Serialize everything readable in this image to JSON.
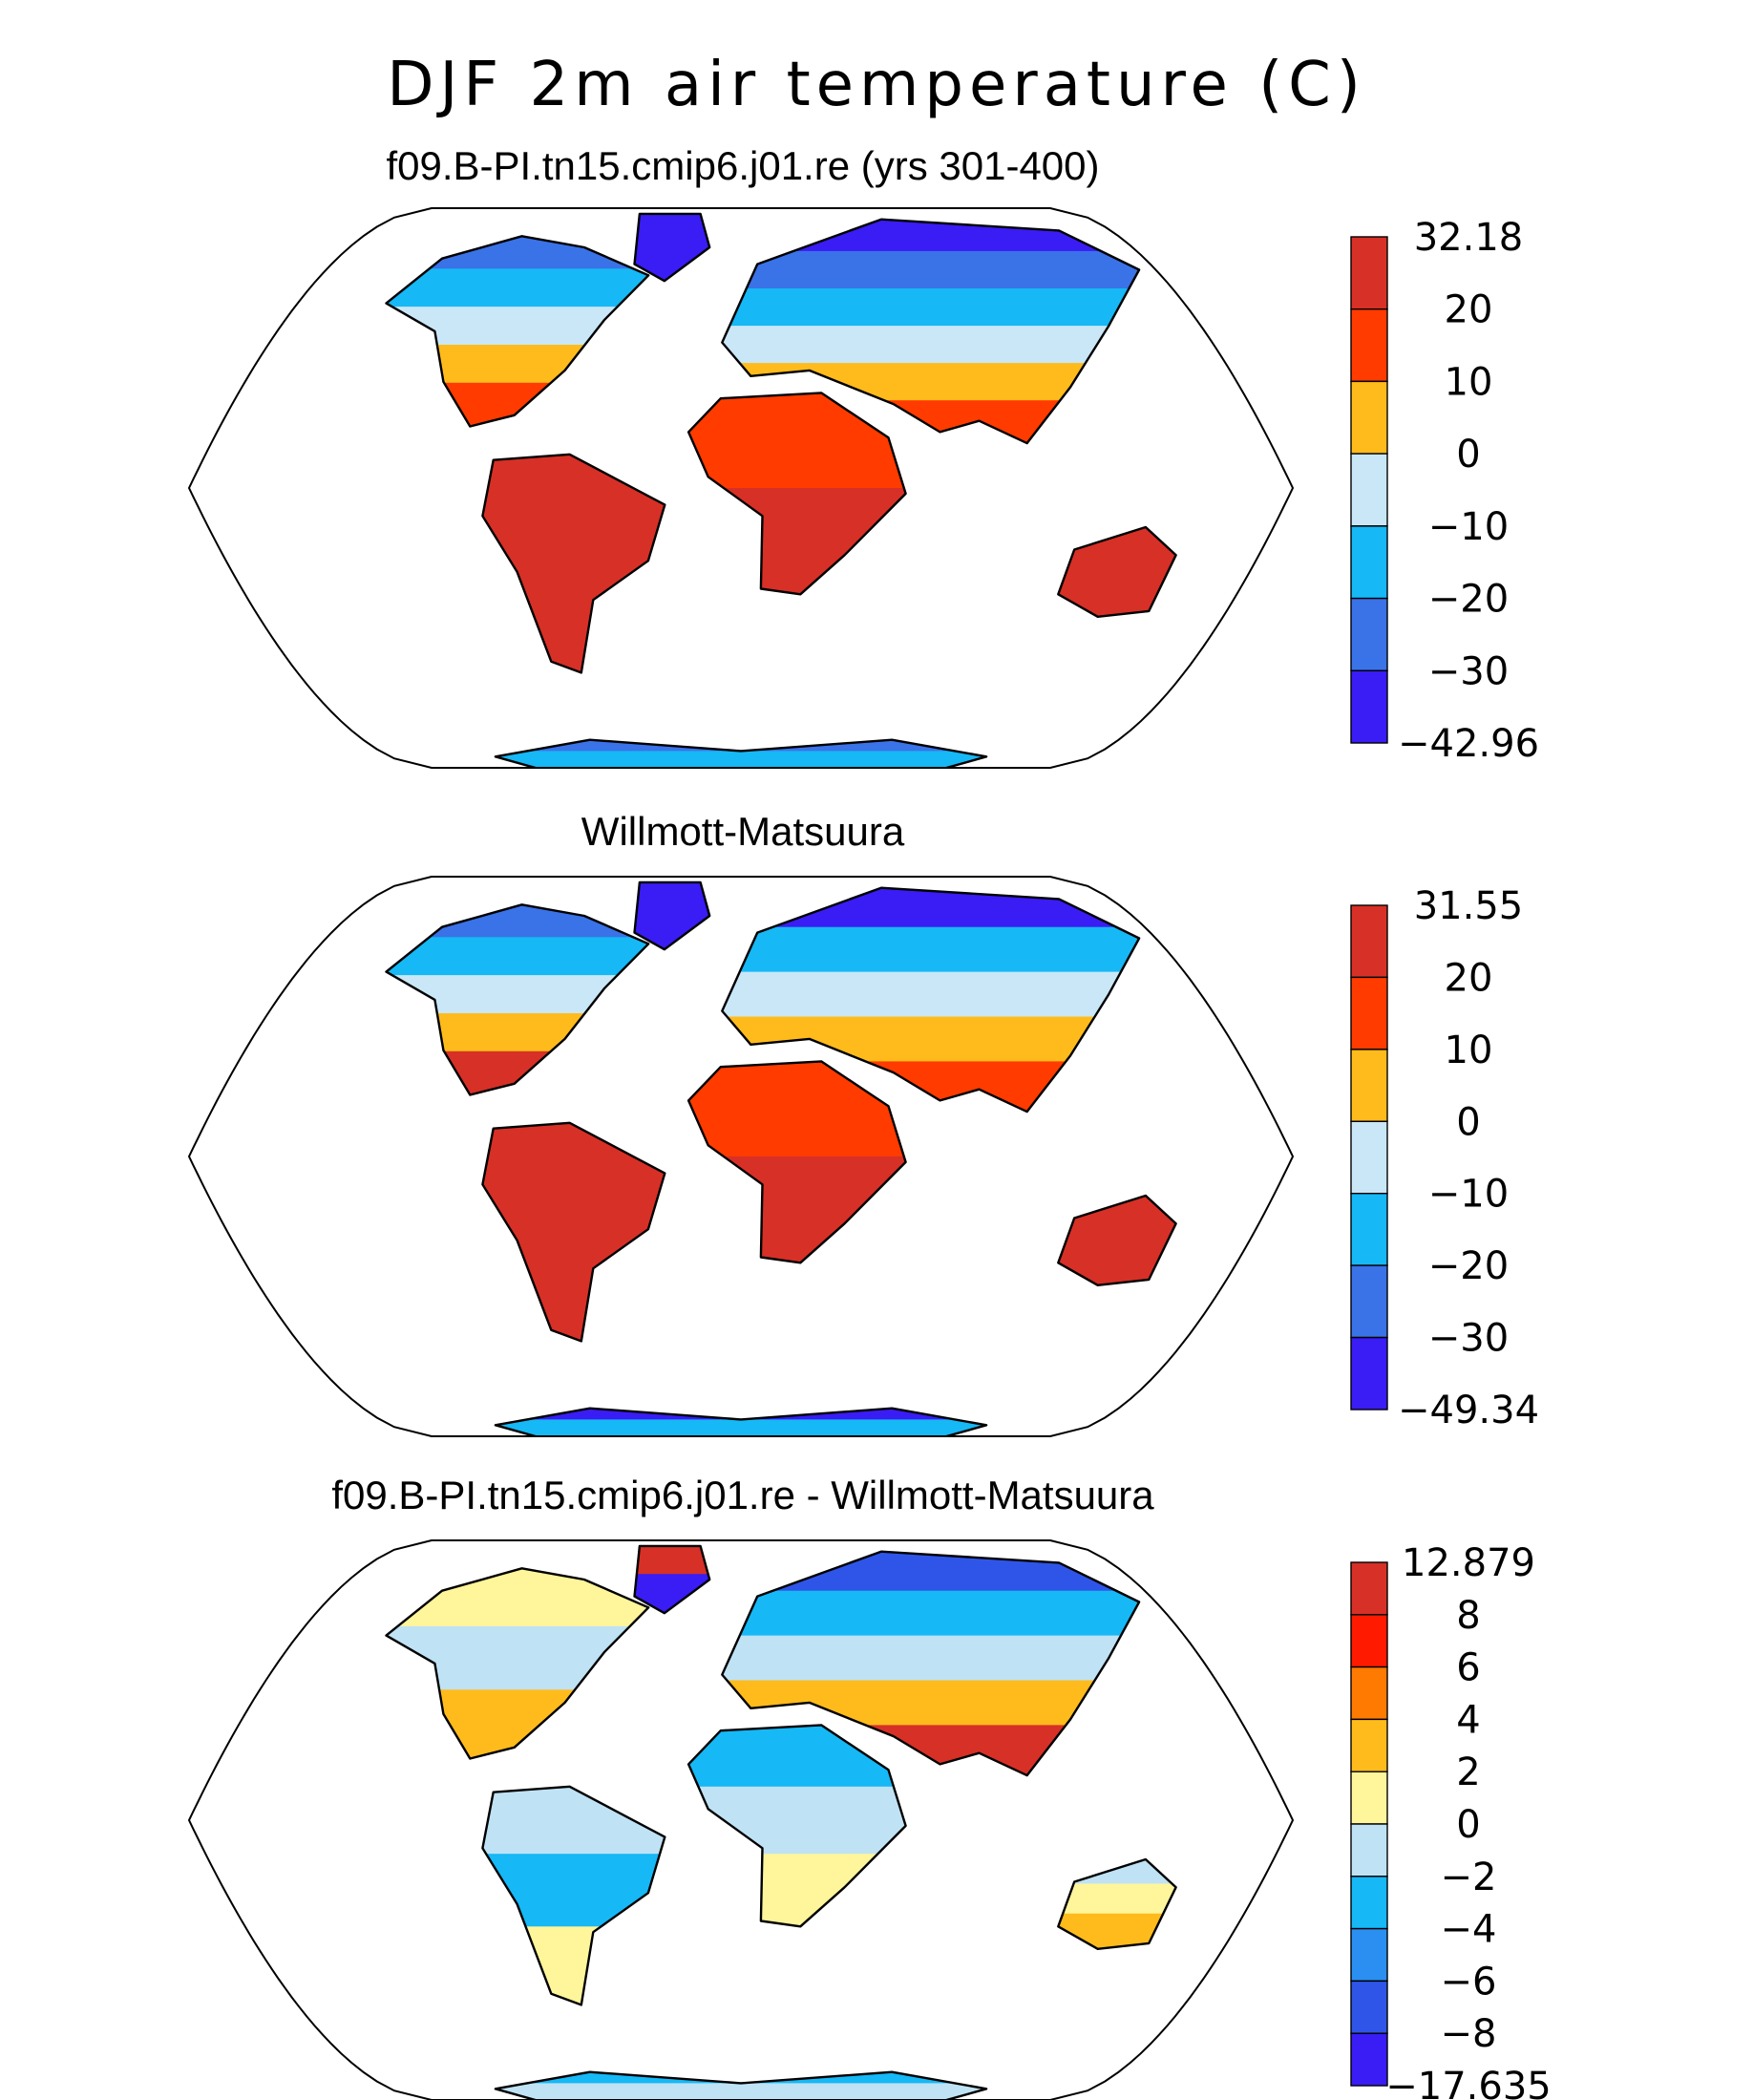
{
  "figure": {
    "title": "DJF 2m air temperature (C)"
  },
  "panels": [
    {
      "title": "f09.B-PI.tn15.cmip6.j01.re (yrs 301-400)",
      "colorbar": {
        "labels": [
          "32.18",
          "20",
          "10",
          "0",
          "−10",
          "−20",
          "−30",
          "−42.96"
        ],
        "colors": [
          "#d73027",
          "#ff3b00",
          "#ffbb1b",
          "#c9e7f7",
          "#16b8f5",
          "#3a72e8",
          "#3a1cf5"
        ]
      }
    },
    {
      "title": "Willmott-Matsuura",
      "colorbar": {
        "labels": [
          "31.55",
          "20",
          "10",
          "0",
          "−10",
          "−20",
          "−30",
          "−49.34"
        ],
        "colors": [
          "#d73027",
          "#ff3b00",
          "#ffbb1b",
          "#c9e7f7",
          "#16b8f5",
          "#3a72e8",
          "#3a1cf5"
        ]
      }
    },
    {
      "title": "f09.B-PI.tn15.cmip6.j01.re - Willmott-Matsuura",
      "colorbar": {
        "labels": [
          "12.879",
          "8",
          "6",
          "4",
          "2",
          "0",
          "−2",
          "−4",
          "−6",
          "−8",
          "−17.635"
        ],
        "colors": [
          "#d73027",
          "#ff1a00",
          "#ff7a00",
          "#ffbb1b",
          "#fff59a",
          "#bfe2f5",
          "#16b8f5",
          "#2a8ff0",
          "#2f55e8",
          "#3a1cf5"
        ]
      }
    }
  ]
}
